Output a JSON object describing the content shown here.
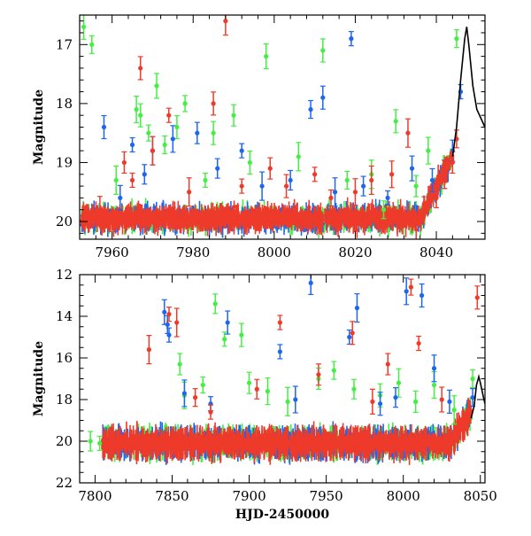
{
  "colors": {
    "green": "#44ee44",
    "blue": "#1e66ee",
    "red": "#ee3a2a",
    "model": "#000000"
  },
  "chart_data": [
    {
      "type": "scatter",
      "title": "",
      "xlabel": "",
      "ylabel": "Magnitude",
      "xlim": [
        7952,
        8052
      ],
      "ylim": [
        20.3,
        16.5
      ],
      "y_inverted": true,
      "xticks": [
        7960,
        7980,
        8000,
        8020,
        8040
      ],
      "yticks": [
        17,
        18,
        19,
        20
      ],
      "grid": false,
      "series": [
        {
          "color_key": "green",
          "points": [
            [
              7953,
              16.7
            ],
            [
              7955,
              17.0
            ],
            [
              7961,
              19.3
            ],
            [
              7966,
              18.1
            ],
            [
              7967,
              18.2
            ],
            [
              7969,
              18.5
            ],
            [
              7971,
              17.7
            ],
            [
              7973,
              18.7
            ],
            [
              7976,
              18.4
            ],
            [
              7978,
              18.0
            ],
            [
              7983,
              19.3
            ],
            [
              7985,
              18.5
            ],
            [
              7990,
              18.2
            ],
            [
              7994,
              19.0
            ],
            [
              7998,
              17.2
            ],
            [
              8006,
              18.9
            ],
            [
              8012,
              17.1
            ],
            [
              8018,
              19.3
            ],
            [
              8024,
              19.2
            ],
            [
              8027,
              19.8
            ],
            [
              8030,
              18.3
            ],
            [
              8035,
              19.4
            ],
            [
              8038,
              18.8
            ],
            [
              8045,
              16.9
            ]
          ]
        },
        {
          "color_key": "blue",
          "points": [
            [
              7958,
              18.4
            ],
            [
              7962,
              19.6
            ],
            [
              7965,
              18.7
            ],
            [
              7968,
              19.2
            ],
            [
              7970,
              18.8
            ],
            [
              7975,
              18.6
            ],
            [
              7981,
              18.5
            ],
            [
              7986,
              19.1
            ],
            [
              7992,
              18.8
            ],
            [
              7997,
              19.4
            ],
            [
              8004,
              19.3
            ],
            [
              8009,
              18.1
            ],
            [
              8012,
              17.9
            ],
            [
              8015,
              19.5
            ],
            [
              8019,
              16.9
            ],
            [
              8022,
              19.4
            ],
            [
              8028,
              19.6
            ],
            [
              8034,
              19.1
            ],
            [
              8039,
              19.3
            ],
            [
              8042,
              19.2
            ],
            [
              8044,
              18.8
            ],
            [
              8046,
              17.8
            ]
          ]
        },
        {
          "color_key": "red",
          "points": [
            [
              7957,
              19.8
            ],
            [
              7963,
              19.0
            ],
            [
              7965,
              19.3
            ],
            [
              7967,
              17.4
            ],
            [
              7970,
              18.8
            ],
            [
              7974,
              18.2
            ],
            [
              7979,
              19.5
            ],
            [
              7985,
              18.0
            ],
            [
              7988,
              16.6
            ],
            [
              7992,
              19.4
            ],
            [
              7999,
              19.1
            ],
            [
              8003,
              19.4
            ],
            [
              8010,
              19.2
            ],
            [
              8014,
              19.6
            ],
            [
              8020,
              19.5
            ],
            [
              8024,
              19.3
            ],
            [
              8029,
              19.2
            ],
            [
              8033,
              18.5
            ],
            [
              8037,
              19.7
            ],
            [
              8040,
              19.6
            ],
            [
              8042,
              19.2
            ],
            [
              8044,
              19.0
            ],
            [
              8045,
              18.6
            ]
          ]
        }
      ],
      "model_curve": [
        [
          8044,
          18.9
        ],
        [
          8045,
          18.4
        ],
        [
          8046,
          17.6
        ],
        [
          8047,
          16.9
        ],
        [
          8047.5,
          16.7
        ],
        [
          8048,
          17.0
        ],
        [
          8049,
          17.7
        ],
        [
          8050,
          18.1
        ],
        [
          8052,
          18.4
        ]
      ]
    },
    {
      "type": "scatter",
      "title": "",
      "xlabel": "HJD-2450000",
      "ylabel": "Magnitude",
      "xlim": [
        7790,
        8053
      ],
      "ylim": [
        22,
        12
      ],
      "y_inverted": true,
      "xticks": [
        7800,
        7850,
        7900,
        7950,
        8000,
        8050
      ],
      "yticks": [
        12,
        14,
        16,
        18,
        20,
        22
      ],
      "grid": false,
      "series": [
        {
          "color_key": "green",
          "points": [
            [
              7797,
              20.0
            ],
            [
              7803,
              20.1
            ],
            [
              7855,
              16.3
            ],
            [
              7858,
              17.8
            ],
            [
              7870,
              17.3
            ],
            [
              7878,
              13.4
            ],
            [
              7884,
              15.1
            ],
            [
              7895,
              14.9
            ],
            [
              7900,
              17.2
            ],
            [
              7912,
              17.6
            ],
            [
              7925,
              18.1
            ],
            [
              7945,
              17.0
            ],
            [
              7955,
              16.6
            ],
            [
              7968,
              17.5
            ],
            [
              7985,
              17.8
            ],
            [
              7997,
              17.2
            ],
            [
              8008,
              18.1
            ],
            [
              8020,
              17.3
            ],
            [
              8033,
              18.5
            ],
            [
              8045,
              17.0
            ]
          ]
        },
        {
          "color_key": "blue",
          "points": [
            [
              7845,
              13.8
            ],
            [
              7847,
              14.4
            ],
            [
              7848,
              14.9
            ],
            [
              7858,
              17.7
            ],
            [
              7875,
              18.2
            ],
            [
              7886,
              14.3
            ],
            [
              7920,
              15.7
            ],
            [
              7930,
              18.0
            ],
            [
              7940,
              12.4
            ],
            [
              7965,
              15.0
            ],
            [
              7970,
              13.6
            ],
            [
              7985,
              18.2
            ],
            [
              7995,
              17.9
            ],
            [
              8002,
              12.8
            ],
            [
              8012,
              13.0
            ],
            [
              8020,
              16.5
            ],
            [
              8030,
              18.1
            ],
            [
              8045,
              17.9
            ]
          ]
        },
        {
          "color_key": "red",
          "points": [
            [
              7835,
              15.6
            ],
            [
              7848,
              13.9
            ],
            [
              7853,
              14.3
            ],
            [
              7865,
              17.9
            ],
            [
              7875,
              18.6
            ],
            [
              7905,
              17.5
            ],
            [
              7920,
              14.3
            ],
            [
              7945,
              16.8
            ],
            [
              7967,
              14.8
            ],
            [
              7980,
              18.1
            ],
            [
              7990,
              16.3
            ],
            [
              8005,
              12.6
            ],
            [
              8010,
              15.3
            ],
            [
              8025,
              18.0
            ],
            [
              8048,
              13.1
            ]
          ]
        }
      ],
      "model_curve": [
        [
          8044,
          18.9
        ],
        [
          8046,
          18.3
        ],
        [
          8047.5,
          17.3
        ],
        [
          8049,
          16.9
        ],
        [
          8050,
          17.2
        ],
        [
          8052,
          17.9
        ],
        [
          8053,
          18.2
        ]
      ]
    }
  ]
}
